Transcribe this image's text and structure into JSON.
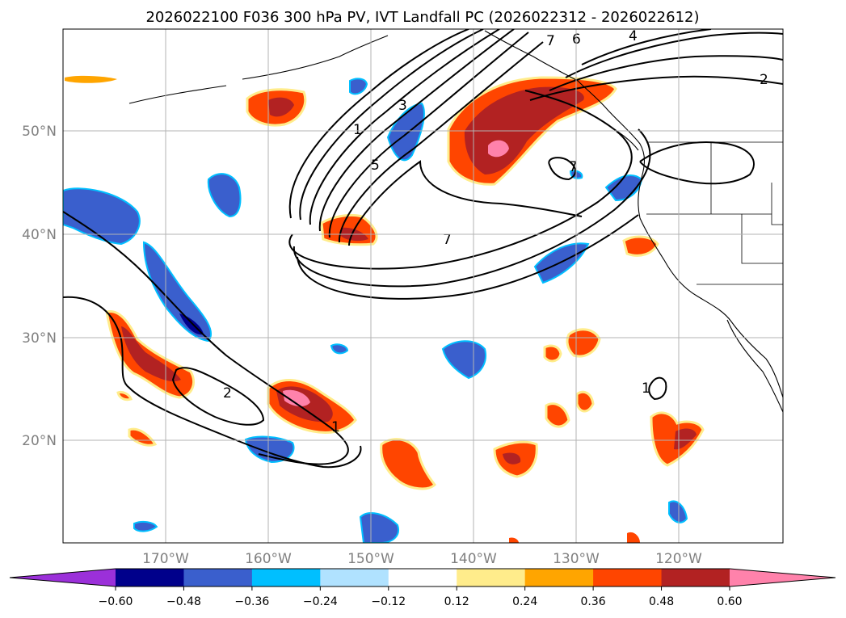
{
  "title": "2026022100 F036 300 hPa PV, IVT Landfall PC (2026022312 - 2026022612)",
  "map": {
    "lat_labels": [
      "50°N",
      "40°N",
      "30°N",
      "20°N"
    ],
    "lon_labels": [
      "170°W",
      "160°W",
      "150°W",
      "140°W",
      "130°W",
      "120°W"
    ],
    "contour_labels": [
      "1",
      "3",
      "5",
      "7",
      "6",
      "4",
      "2",
      "7",
      "7",
      "2",
      "1",
      "1"
    ]
  },
  "colorbar": {
    "ticks": [
      "−0.60",
      "−0.48",
      "−0.36",
      "−0.24",
      "−0.12",
      "0.12",
      "0.24",
      "0.36",
      "0.48",
      "0.60"
    ],
    "colors": [
      "#9b30d9",
      "#00008b",
      "#3a5fcd",
      "#00bfff",
      "#b0e2ff",
      "#ffffff",
      "#ffec8b",
      "#ffa500",
      "#ff4500",
      "#b22222",
      "#ff82ab"
    ]
  },
  "colors": {
    "grid": "#b3b3b3",
    "contour": "#000000"
  }
}
